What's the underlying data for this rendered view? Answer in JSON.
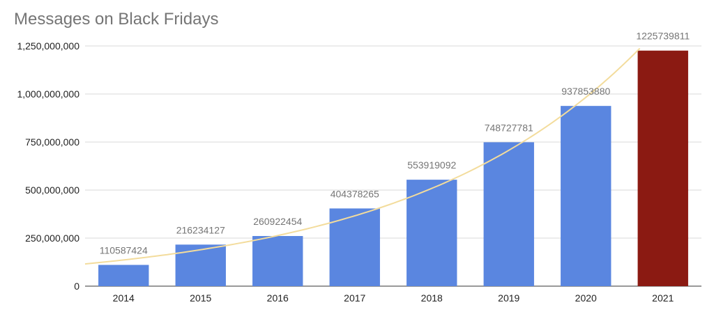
{
  "chart_data": {
    "type": "bar",
    "title": "Messages on Black Fridays",
    "xlabel": "",
    "ylabel": "",
    "categories": [
      "2014",
      "2015",
      "2016",
      "2017",
      "2018",
      "2019",
      "2020",
      "2021"
    ],
    "values": [
      110587424,
      216234127,
      260922454,
      404378265,
      553919092,
      748727781,
      937853880,
      1225739811
    ],
    "data_labels": [
      "110587424",
      "216234127",
      "260922454",
      "404378265",
      "553919092",
      "748727781",
      "937853880",
      "1225739811"
    ],
    "ylim": [
      0,
      1250000000
    ],
    "y_ticks": [
      {
        "value": 0,
        "label": "0"
      },
      {
        "value": 250000000,
        "label": "250,000,000"
      },
      {
        "value": 500000000,
        "label": "500,000,000"
      },
      {
        "value": 750000000,
        "label": "750,000,000"
      },
      {
        "value": 1000000000,
        "label": "1,000,000,000"
      },
      {
        "value": 1250000000,
        "label": "1,250,000,000"
      }
    ],
    "grid": true,
    "legend": "none",
    "trendline": "exponential",
    "colors": {
      "bar": "#5a86e0",
      "highlight_bar": "#8b1a12",
      "highlight_category": "2021",
      "trendline": "#f3dc9c",
      "grid": "#d9d9d9",
      "axis": "#333333"
    }
  }
}
